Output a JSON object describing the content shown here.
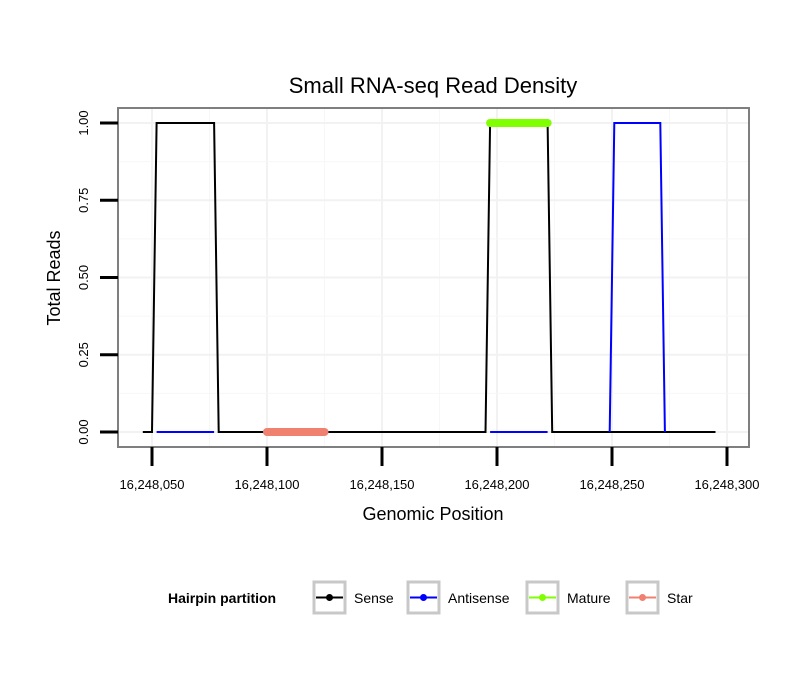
{
  "chart_data": {
    "type": "line",
    "title": "Small RNA-seq Read Density",
    "xlabel": "Genomic Position",
    "ylabel": "Total Reads",
    "xlim": [
      16248045,
      16248300
    ],
    "ylim": [
      0,
      1.0
    ],
    "x_ticks": [
      16248050,
      16248100,
      16248150,
      16248200,
      16248250,
      16248300
    ],
    "x_tick_labels": [
      "16,248,050",
      "16,248,100",
      "16,248,150",
      "16,248,200",
      "16,248,250",
      "16,248,300"
    ],
    "y_ticks": [
      0,
      0.25,
      0.5,
      0.75,
      1.0
    ],
    "y_tick_labels": [
      "0.00",
      "0.25",
      "0.50",
      "0.75",
      "1.00"
    ],
    "grid": true,
    "series": [
      {
        "name": "Sense",
        "color": "#000000",
        "x": [
          16248046,
          16248050,
          16248052,
          16248077,
          16248079,
          16248195,
          16248197,
          16248222,
          16248224,
          16248295
        ],
        "y": [
          0,
          0,
          1,
          1,
          0,
          0,
          1,
          1,
          0,
          0
        ]
      },
      {
        "name": "Antisense",
        "color": "#0000ff",
        "x": [
          16248052,
          16248077,
          16248197,
          16248222,
          16248249,
          16248251,
          16248271,
          16248273
        ],
        "y": [
          0,
          0,
          0,
          0,
          0,
          1,
          1,
          0
        ],
        "segments": [
          [
            0,
            1
          ],
          [
            2,
            3
          ],
          [
            4,
            5,
            6,
            7
          ]
        ]
      },
      {
        "name": "Mature",
        "color": "#7fff00",
        "x": [
          16248197,
          16248222
        ],
        "y": [
          1,
          1
        ]
      },
      {
        "name": "Star",
        "color": "#f08070",
        "x": [
          16248100,
          16248125
        ],
        "y": [
          0,
          0
        ]
      }
    ],
    "legend": {
      "title": "Hairpin partition",
      "position": "bottom",
      "entries": [
        "Sense",
        "Antisense",
        "Mature",
        "Star"
      ]
    }
  }
}
